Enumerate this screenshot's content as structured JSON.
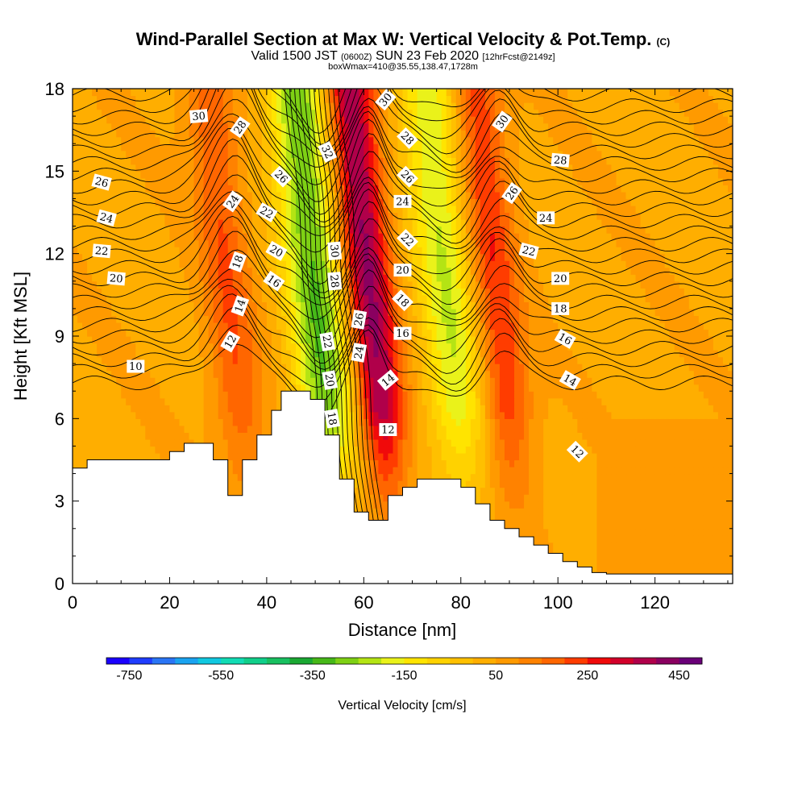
{
  "titles": {
    "main": "Wind-Parallel Section at Max W: Vertical Velocity & Pot.Temp.",
    "copyright": "(C)",
    "valid_a": "Valid 1500 JST",
    "valid_utc": "(0600Z)",
    "valid_b": "SUN 23 Feb 2020",
    "forecast": "[12hrFcst@2149z]",
    "box": "boxWmax=410@35.55,138.47,1728m"
  },
  "chart_data": {
    "type": "cross-section contour",
    "xlabel": "Distance [nm]",
    "ylabel": "Height [Kft MSL]",
    "xlim": [
      0,
      136
    ],
    "ylim": [
      0,
      18
    ],
    "xticks": [
      "0",
      "20",
      "40",
      "60",
      "80",
      "100",
      "120"
    ],
    "yticks": [
      "0",
      "3",
      "6",
      "9",
      "12",
      "15",
      "18"
    ],
    "colorbar": {
      "label": "Vertical Velocity [cm/s]",
      "tick_labels": [
        "-750",
        "-550",
        "-350",
        "-150",
        "50",
        "250",
        "450"
      ],
      "colors": [
        "#1a00ff",
        "#1f3dff",
        "#2a75f5",
        "#1aa3f0",
        "#10c8e0",
        "#12dcb4",
        "#10cf8a",
        "#18c060",
        "#1aa832",
        "#46b818",
        "#7ed014",
        "#b4e414",
        "#eaf21a",
        "#ffe400",
        "#ffd200",
        "#ffc000",
        "#ffae00",
        "#ff9a00",
        "#ff8200",
        "#ff6600",
        "#ff3c00",
        "#f00a0a",
        "#d2002a",
        "#b0004a",
        "#8a0060",
        "#6a0078"
      ]
    },
    "terrain_kft": [
      [
        0,
        4.2
      ],
      [
        3,
        4.2
      ],
      [
        3,
        4.5
      ],
      [
        20,
        4.5
      ],
      [
        20,
        4.8
      ],
      [
        23,
        4.8
      ],
      [
        23,
        5.1
      ],
      [
        29,
        5.1
      ],
      [
        29,
        4.5
      ],
      [
        32,
        4.5
      ],
      [
        32,
        3.2
      ],
      [
        35,
        3.2
      ],
      [
        35,
        4.5
      ],
      [
        38,
        4.5
      ],
      [
        38,
        5.4
      ],
      [
        41,
        5.4
      ],
      [
        41,
        6.3
      ],
      [
        43,
        6.3
      ],
      [
        43,
        7.0
      ],
      [
        49,
        7.0
      ],
      [
        49,
        6.7
      ],
      [
        52,
        6.7
      ],
      [
        52,
        5.4
      ],
      [
        55,
        5.4
      ],
      [
        55,
        3.8
      ],
      [
        58,
        3.8
      ],
      [
        58,
        2.6
      ],
      [
        61,
        2.6
      ],
      [
        61,
        2.3
      ],
      [
        65,
        2.3
      ],
      [
        65,
        3.2
      ],
      [
        68,
        3.2
      ],
      [
        68,
        3.5
      ],
      [
        71,
        3.5
      ],
      [
        71,
        3.8
      ],
      [
        80,
        3.8
      ],
      [
        80,
        3.5
      ],
      [
        83,
        3.5
      ],
      [
        83,
        2.9
      ],
      [
        86,
        2.9
      ],
      [
        86,
        2.3
      ],
      [
        89,
        2.3
      ],
      [
        89,
        2.0
      ],
      [
        92,
        2.0
      ],
      [
        92,
        1.7
      ],
      [
        95,
        1.7
      ],
      [
        95,
        1.4
      ],
      [
        98,
        1.4
      ],
      [
        98,
        1.1
      ],
      [
        101,
        1.1
      ],
      [
        101,
        0.8
      ],
      [
        104,
        0.8
      ],
      [
        104,
        0.6
      ],
      [
        107,
        0.6
      ],
      [
        107,
        0.4
      ],
      [
        110,
        0.4
      ],
      [
        110,
        0.35
      ],
      [
        136,
        0.35
      ]
    ],
    "vertical_velocity_bands": [
      {
        "x": 33,
        "width": 5,
        "peak": 250
      },
      {
        "x": 51,
        "width": 6,
        "peak": -250
      },
      {
        "x": 62,
        "width": 5,
        "peak": 460
      },
      {
        "x": 78,
        "width": 6,
        "peak": -150
      },
      {
        "x": 88,
        "width": 5,
        "peak": 300
      }
    ],
    "theta_contour_labels": [
      {
        "text": "30",
        "x": 26,
        "y": 17.0,
        "angle": -5
      },
      {
        "text": "28",
        "x": 34.5,
        "y": 16.6,
        "angle": -55
      },
      {
        "text": "26",
        "x": 6,
        "y": 14.6,
        "angle": 15
      },
      {
        "text": "26",
        "x": 43,
        "y": 14.8,
        "angle": 45
      },
      {
        "text": "24",
        "x": 7,
        "y": 13.3,
        "angle": 15
      },
      {
        "text": "24",
        "x": 33,
        "y": 13.9,
        "angle": -55
      },
      {
        "text": "22",
        "x": 40,
        "y": 13.5,
        "angle": 30
      },
      {
        "text": "22",
        "x": 6,
        "y": 12.1,
        "angle": 5
      },
      {
        "text": "20",
        "x": 42,
        "y": 12.1,
        "angle": 30
      },
      {
        "text": "20",
        "x": 9,
        "y": 11.1,
        "angle": 5
      },
      {
        "text": "18",
        "x": 34,
        "y": 11.7,
        "angle": -70
      },
      {
        "text": "16",
        "x": 41.5,
        "y": 11.0,
        "angle": 35
      },
      {
        "text": "14",
        "x": 34.5,
        "y": 10.1,
        "angle": -70
      },
      {
        "text": "12",
        "x": 32.5,
        "y": 8.8,
        "angle": -60
      },
      {
        "text": "10",
        "x": 13,
        "y": 7.9,
        "angle": 0
      },
      {
        "text": "32",
        "x": 52.5,
        "y": 15.7,
        "angle": 65
      },
      {
        "text": "30",
        "x": 54,
        "y": 12.1,
        "angle": 85
      },
      {
        "text": "28",
        "x": 54,
        "y": 11.0,
        "angle": 85
      },
      {
        "text": "26",
        "x": 59,
        "y": 9.6,
        "angle": -80
      },
      {
        "text": "24",
        "x": 59,
        "y": 8.4,
        "angle": -80
      },
      {
        "text": "22",
        "x": 52.5,
        "y": 8.8,
        "angle": 80
      },
      {
        "text": "20",
        "x": 53,
        "y": 7.4,
        "angle": 80
      },
      {
        "text": "18",
        "x": 53.5,
        "y": 6.0,
        "angle": 80
      },
      {
        "text": "30",
        "x": 64.5,
        "y": 17.6,
        "angle": -50
      },
      {
        "text": "28",
        "x": 69,
        "y": 16.2,
        "angle": 45
      },
      {
        "text": "26",
        "x": 69,
        "y": 14.8,
        "angle": 45
      },
      {
        "text": "24",
        "x": 68,
        "y": 13.9,
        "angle": 0
      },
      {
        "text": "22",
        "x": 69,
        "y": 12.5,
        "angle": 45
      },
      {
        "text": "20",
        "x": 68,
        "y": 11.4,
        "angle": 0
      },
      {
        "text": "18",
        "x": 68,
        "y": 10.3,
        "angle": 45
      },
      {
        "text": "16",
        "x": 68,
        "y": 9.1,
        "angle": 0
      },
      {
        "text": "14",
        "x": 65,
        "y": 7.4,
        "angle": -40
      },
      {
        "text": "12",
        "x": 65,
        "y": 5.6,
        "angle": 0
      },
      {
        "text": "30",
        "x": 88.5,
        "y": 16.8,
        "angle": -55
      },
      {
        "text": "28",
        "x": 100.5,
        "y": 15.4,
        "angle": 5
      },
      {
        "text": "26",
        "x": 90.5,
        "y": 14.2,
        "angle": -55
      },
      {
        "text": "24",
        "x": 97.5,
        "y": 13.3,
        "angle": 0
      },
      {
        "text": "22",
        "x": 94,
        "y": 12.1,
        "angle": 15
      },
      {
        "text": "20",
        "x": 100.5,
        "y": 11.1,
        "angle": 0
      },
      {
        "text": "18",
        "x": 100.5,
        "y": 10.0,
        "angle": 0
      },
      {
        "text": "16",
        "x": 101.5,
        "y": 8.9,
        "angle": 30
      },
      {
        "text": "14",
        "x": 102.5,
        "y": 7.4,
        "angle": 30
      },
      {
        "text": "12",
        "x": 104,
        "y": 4.8,
        "angle": 45
      }
    ]
  }
}
